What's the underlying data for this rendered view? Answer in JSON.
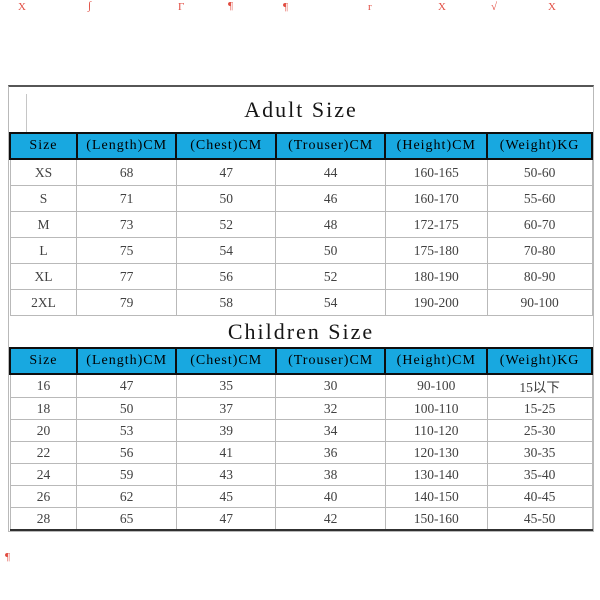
{
  "image": {
    "background": "#ffffff",
    "kind": "apparel size chart"
  },
  "colors": {
    "header_bg": "#18a8e0",
    "header_text": "#000000",
    "cell_text": "#414141",
    "grid_line": "#b9b9b9",
    "heavy_line": "#0e0e0e",
    "mark_red": "#de372b"
  },
  "columns": [
    "Size",
    "(Length)CM",
    "(Chest)CM",
    "(Trouser)CM",
    "(Height)CM",
    "(Weight)KG"
  ],
  "adult": {
    "title": "Adult Size",
    "rows": [
      [
        "XS",
        "68",
        "47",
        "44",
        "160-165",
        "50-60"
      ],
      [
        "S",
        "71",
        "50",
        "46",
        "160-170",
        "55-60"
      ],
      [
        "M",
        "73",
        "52",
        "48",
        "172-175",
        "60-70"
      ],
      [
        "L",
        "75",
        "54",
        "50",
        "175-180",
        "70-80"
      ],
      [
        "XL",
        "77",
        "56",
        "52",
        "180-190",
        "80-90"
      ],
      [
        "2XL",
        "79",
        "58",
        "54",
        "190-200",
        "90-100"
      ]
    ]
  },
  "children": {
    "title": "Children Size",
    "rows": [
      [
        "16",
        "47",
        "35",
        "30",
        "90-100",
        "15以下"
      ],
      [
        "18",
        "50",
        "37",
        "32",
        "100-110",
        "15-25"
      ],
      [
        "20",
        "53",
        "39",
        "34",
        "110-120",
        "25-30"
      ],
      [
        "22",
        "56",
        "41",
        "36",
        "120-130",
        "30-35"
      ],
      [
        "24",
        "59",
        "43",
        "38",
        "130-140",
        "35-40"
      ],
      [
        "26",
        "62",
        "45",
        "40",
        "140-150",
        "40-45"
      ],
      [
        "28",
        "65",
        "47",
        "42",
        "150-160",
        "45-50"
      ]
    ]
  },
  "watermarks": {
    "top": [
      "X",
      "∫",
      "Γ",
      "¶",
      "¶",
      "r",
      "X",
      "√",
      "X"
    ],
    "bottom_left": "¶"
  }
}
